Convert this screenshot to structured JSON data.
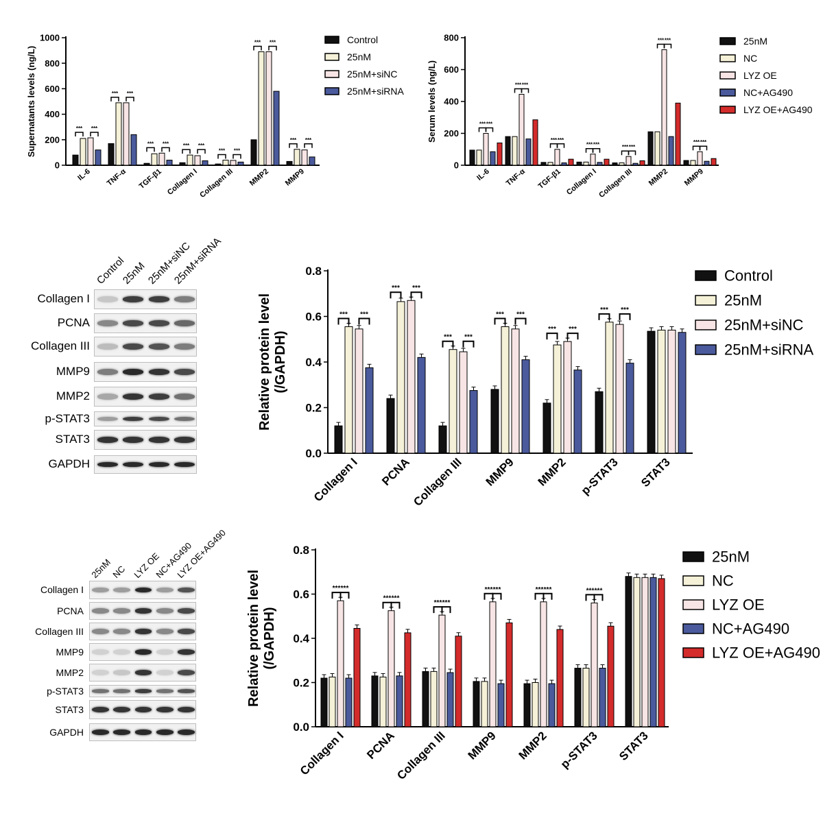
{
  "colors": {
    "black": "#111111",
    "cream": "#f4f1d8",
    "pink": "#f7e4e4",
    "blue": "#4a5a9c",
    "red": "#d42b2b"
  },
  "chart_data": [
    {
      "type": "bar",
      "ylabel": "Supernatants levels (ng/L)",
      "ylim": [
        0,
        1000
      ],
      "yticks": [
        "0",
        "200",
        "400",
        "600",
        "800",
        "1000"
      ],
      "categories": [
        "IL-6",
        "TNF-α",
        "TGF-β1",
        "Collagen I",
        "Collagen III",
        "MMP2",
        "MMP9"
      ],
      "legend": "right",
      "series": [
        {
          "name": "Control",
          "color": "#111111",
          "values": [
            80,
            170,
            15,
            20,
            10,
            200,
            30
          ]
        },
        {
          "name": "25nM",
          "color": "#f4f1d8",
          "values": [
            210,
            490,
            90,
            80,
            40,
            890,
            125
          ]
        },
        {
          "name": "25nM+siNC",
          "color": "#f7e4e4",
          "values": [
            215,
            490,
            95,
            75,
            38,
            890,
            120
          ]
        },
        {
          "name": "25nM+siRNA",
          "color": "#4a5a9c",
          "values": [
            120,
            240,
            40,
            35,
            25,
            580,
            65
          ]
        }
      ],
      "sig": "***"
    },
    {
      "type": "bar",
      "ylabel": "Serum levels (ng/L)",
      "ylim": [
        0,
        800
      ],
      "yticks": [
        "0",
        "200",
        "400",
        "600",
        "800"
      ],
      "categories": [
        "IL-6",
        "TNF-α",
        "TGF-β1",
        "Collagen I",
        "Collagen III",
        "MMP2",
        "MMP9"
      ],
      "legend": "right",
      "series": [
        {
          "name": "25nM",
          "color": "#111111",
          "values": [
            95,
            180,
            18,
            20,
            15,
            210,
            30
          ]
        },
        {
          "name": "NC",
          "color": "#f4f1d8",
          "values": [
            95,
            180,
            18,
            20,
            15,
            210,
            30
          ]
        },
        {
          "name": "LYZ OE",
          "color": "#f7e4e4",
          "values": [
            200,
            445,
            100,
            70,
            55,
            725,
            85
          ]
        },
        {
          "name": "NC+AG490",
          "color": "#4a5a9c",
          "values": [
            85,
            165,
            15,
            18,
            12,
            180,
            25
          ]
        },
        {
          "name": "LYZ OE+AG490",
          "color": "#d42b2b",
          "values": [
            140,
            285,
            38,
            38,
            28,
            390,
            42
          ]
        }
      ],
      "sig": "***"
    },
    {
      "type": "bar",
      "ylabel": "Relative protein level (/GAPDH)",
      "ylim": [
        0,
        0.8
      ],
      "yticks": [
        "0.0",
        "0.2",
        "0.4",
        "0.6",
        "0.8"
      ],
      "categories": [
        "Collagen I",
        "PCNA",
        "Collagen III",
        "MMP9",
        "MMP2",
        "p-STAT3",
        "STAT3"
      ],
      "legend": "right",
      "series": [
        {
          "name": "Control",
          "color": "#111111",
          "values": [
            0.12,
            0.24,
            0.12,
            0.28,
            0.22,
            0.27,
            0.535
          ]
        },
        {
          "name": "25nM",
          "color": "#f4f1d8",
          "values": [
            0.555,
            0.665,
            0.455,
            0.555,
            0.475,
            0.575,
            0.54
          ]
        },
        {
          "name": "25nM+siNC",
          "color": "#f7e4e4",
          "values": [
            0.545,
            0.67,
            0.445,
            0.545,
            0.49,
            0.565,
            0.54
          ]
        },
        {
          "name": "25nM+siRNA",
          "color": "#4a5a9c",
          "values": [
            0.375,
            0.42,
            0.275,
            0.41,
            0.365,
            0.395,
            0.53
          ]
        }
      ],
      "sig": "***"
    },
    {
      "type": "bar",
      "ylabel": "Relative protein level (/GAPDH)",
      "ylim": [
        0,
        0.8
      ],
      "yticks": [
        "0.0",
        "0.2",
        "0.4",
        "0.6",
        "0.8"
      ],
      "categories": [
        "Collagen I",
        "PCNA",
        "Collagen III",
        "MMP9",
        "MMP2",
        "p-STAT3",
        "STAT3"
      ],
      "legend": "right",
      "series": [
        {
          "name": "25nM",
          "color": "#111111",
          "values": [
            0.22,
            0.23,
            0.25,
            0.205,
            0.195,
            0.265,
            0.68
          ]
        },
        {
          "name": "NC",
          "color": "#f4f1d8",
          "values": [
            0.225,
            0.225,
            0.25,
            0.205,
            0.2,
            0.265,
            0.675
          ]
        },
        {
          "name": "LYZ OE",
          "color": "#f7e4e4",
          "values": [
            0.57,
            0.525,
            0.505,
            0.565,
            0.565,
            0.56,
            0.675
          ]
        },
        {
          "name": "NC+AG490",
          "color": "#4a5a9c",
          "values": [
            0.22,
            0.23,
            0.245,
            0.195,
            0.195,
            0.265,
            0.675
          ]
        },
        {
          "name": "LYZ OE+AG490",
          "color": "#d42b2b",
          "values": [
            0.445,
            0.425,
            0.41,
            0.47,
            0.44,
            0.455,
            0.67
          ]
        }
      ],
      "sig": "***"
    }
  ],
  "blots": [
    {
      "lanes": [
        "Control",
        "25nM",
        "25nM+siNC",
        "25nM+siRNA"
      ],
      "rows": [
        {
          "label": "Collagen I",
          "intensity": [
            0.15,
            0.8,
            0.8,
            0.5
          ]
        },
        {
          "label": "PCNA",
          "intensity": [
            0.45,
            0.75,
            0.75,
            0.6
          ]
        },
        {
          "label": "Collagen III",
          "intensity": [
            0.2,
            0.75,
            0.7,
            0.5
          ]
        },
        {
          "label": "MMP9",
          "intensity": [
            0.5,
            0.9,
            0.85,
            0.75
          ]
        },
        {
          "label": "MMP2",
          "intensity": [
            0.3,
            0.85,
            0.8,
            0.55
          ]
        },
        {
          "label": "p-STAT3",
          "intensity": [
            0.35,
            0.8,
            0.75,
            0.55
          ]
        },
        {
          "label": "STAT3",
          "intensity": [
            0.85,
            0.85,
            0.85,
            0.85
          ]
        },
        {
          "label": "GAPDH",
          "intensity": [
            0.9,
            0.9,
            0.9,
            0.9
          ]
        }
      ]
    },
    {
      "lanes": [
        "25nM",
        "NC",
        "LYZ OE",
        "NC+AG490",
        "LYZ OE+AG490"
      ],
      "rows": [
        {
          "label": "Collagen I",
          "intensity": [
            0.35,
            0.35,
            0.9,
            0.35,
            0.7
          ]
        },
        {
          "label": "PCNA",
          "intensity": [
            0.45,
            0.45,
            0.85,
            0.45,
            0.75
          ]
        },
        {
          "label": "Collagen III",
          "intensity": [
            0.45,
            0.45,
            0.85,
            0.45,
            0.75
          ]
        },
        {
          "label": "MMP9",
          "intensity": [
            0.1,
            0.1,
            0.9,
            0.1,
            0.85
          ]
        },
        {
          "label": "MMP2",
          "intensity": [
            0.1,
            0.15,
            0.85,
            0.1,
            0.75
          ]
        },
        {
          "label": "p-STAT3",
          "intensity": [
            0.55,
            0.55,
            0.8,
            0.55,
            0.7
          ]
        },
        {
          "label": "STAT3",
          "intensity": [
            0.85,
            0.85,
            0.85,
            0.85,
            0.85
          ]
        },
        {
          "label": "GAPDH",
          "intensity": [
            0.9,
            0.9,
            0.9,
            0.9,
            0.9
          ]
        }
      ]
    }
  ]
}
